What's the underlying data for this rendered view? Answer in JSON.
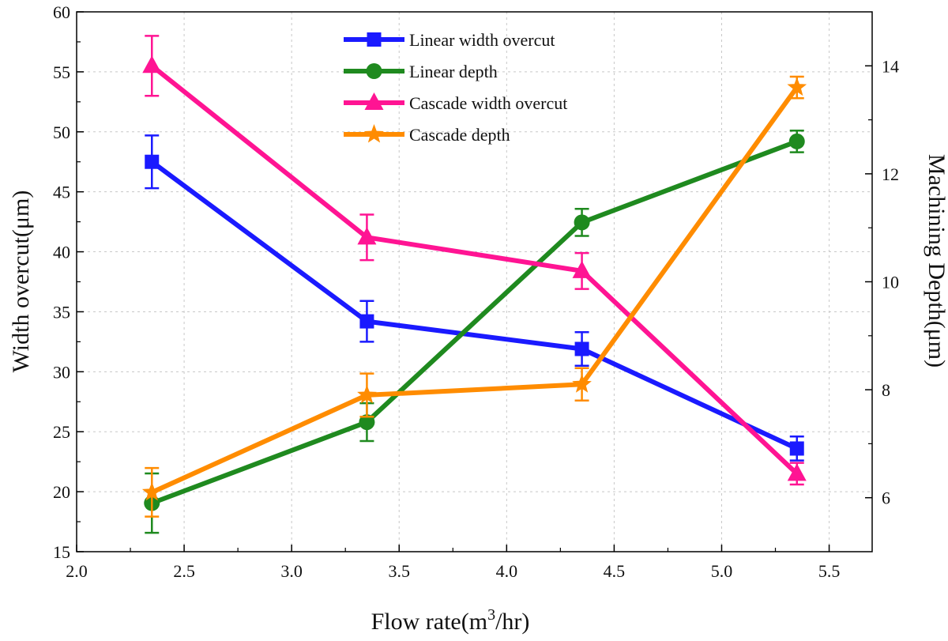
{
  "chart_data": {
    "type": "line",
    "title": "",
    "xlabel": "Flow rate(m",
    "xlabel_sup": "3",
    "xlabel_tail": "/hr)",
    "ylabel_left": "Width overcut(μm)",
    "ylabel_right": "Machining Depth(μm)",
    "xlim": [
      2.0,
      5.7
    ],
    "ylim_left": [
      15,
      60
    ],
    "ylim_right": [
      5,
      15
    ],
    "x_ticks": [
      2.0,
      2.5,
      3.0,
      3.5,
      4.0,
      4.5,
      5.0,
      5.5
    ],
    "x_tick_labels": [
      "2.0",
      "2.5",
      "3.0",
      "3.5",
      "4.0",
      "4.5",
      "5.0",
      "5.5"
    ],
    "y_left_ticks": [
      15,
      20,
      25,
      30,
      35,
      40,
      45,
      50,
      55,
      60
    ],
    "y_left_tick_labels": [
      "15",
      "20",
      "25",
      "30",
      "35",
      "40",
      "45",
      "50",
      "55",
      "60"
    ],
    "y_right_ticks": [
      6,
      8,
      10,
      12,
      14
    ],
    "y_right_tick_labels": [
      "6",
      "8",
      "10",
      "12",
      "14"
    ],
    "grid": true,
    "legend_position": "top-center",
    "x": [
      2.35,
      3.35,
      4.35,
      5.35
    ],
    "series": [
      {
        "name": "Linear width overcut",
        "axis": "left",
        "color": "#1a1aff",
        "marker": "square",
        "values": [
          47.5,
          34.2,
          31.9,
          23.6
        ],
        "errors": [
          2.2,
          1.7,
          1.4,
          1.0
        ]
      },
      {
        "name": "Linear depth",
        "axis": "right",
        "color": "#1f8a1f",
        "marker": "circle",
        "values": [
          5.9,
          7.4,
          11.1,
          12.6
        ],
        "errors": [
          0.55,
          0.35,
          0.25,
          0.2
        ]
      },
      {
        "name": "Cascade width overcut",
        "axis": "left",
        "color": "#ff1493",
        "marker": "triangle",
        "values": [
          55.5,
          41.2,
          38.4,
          21.5
        ],
        "errors": [
          2.5,
          1.9,
          1.5,
          0.9
        ]
      },
      {
        "name": "Cascade depth",
        "axis": "right",
        "color": "#ff8c00",
        "marker": "star",
        "values": [
          6.1,
          7.9,
          8.1,
          13.6
        ],
        "errors": [
          0.45,
          0.4,
          0.3,
          0.2
        ]
      }
    ]
  }
}
